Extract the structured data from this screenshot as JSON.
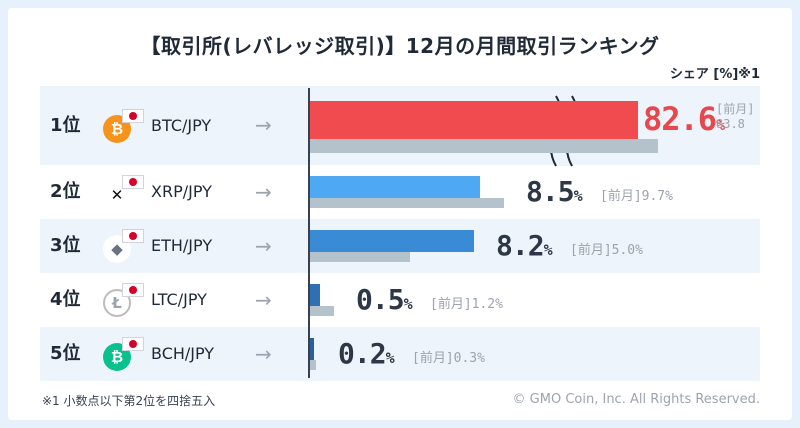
{
  "title": "【取引所(レバレッジ取引)】12月の月間取引ランキング",
  "share_label": "シェア [%]※1",
  "prev_label": "[前月]",
  "rows": [
    {
      "rank": "1位",
      "pair": "BTC/JPY",
      "current": "82.6",
      "previous": "83.8",
      "current_color": "#e8474c",
      "coin_icon": "bitcoin-icon",
      "coin_glyph": "₿",
      "coin_color": "#f7931a"
    },
    {
      "rank": "2位",
      "pair": "XRP/JPY",
      "current": "8.5",
      "previous": "9.7",
      "current_color": "#2d3748",
      "coin_icon": "xrp-icon",
      "coin_glyph": "✕",
      "coin_color": "#ffffff"
    },
    {
      "rank": "3位",
      "pair": "ETH/JPY",
      "current": "8.2",
      "previous": "5.0",
      "current_color": "#2d3748",
      "coin_icon": "ethereum-icon",
      "coin_glyph": "◆",
      "coin_color": "#ffffff"
    },
    {
      "rank": "4位",
      "pair": "LTC/JPY",
      "current": "0.5",
      "previous": "1.2",
      "current_color": "#2d3748",
      "coin_icon": "litecoin-icon",
      "coin_glyph": "Ł",
      "coin_color": "#bfbbbb"
    },
    {
      "rank": "5位",
      "pair": "BCH/JPY",
      "current": "0.2",
      "previous": "0.3",
      "current_color": "#2d3748",
      "coin_icon": "bitcoin-cash-icon",
      "coin_glyph": "₿",
      "coin_color": "#0ac18e"
    }
  ],
  "footnote": "※1  小数点以下第2位を四捨五入",
  "copyright": "© GMO Coin, Inc. All Rights Reserved.",
  "colors": {
    "btc_bar": "#f04b4f",
    "xrp_bar": "#4fa8f2",
    "eth_bar": "#3a8bd6",
    "ltc_bar": "#2f6fb3",
    "bch_bar": "#2a5f9e",
    "prev_bar": "#b4c2cc"
  },
  "chart_data": {
    "type": "bar",
    "title": "【取引所(レバレッジ取引)】12月の月間取引ランキング",
    "categories": [
      "BTC/JPY",
      "XRP/JPY",
      "ETH/JPY",
      "LTC/JPY",
      "BCH/JPY"
    ],
    "series": [
      {
        "name": "",
        "values": [
          82.6,
          8.5,
          8.2,
          0.5,
          0.2
        ]
      },
      {
        "name": "[前月]",
        "values": [
          83.8,
          9.7,
          5.0,
          1.2,
          0.3
        ]
      }
    ],
    "ylabel": "シェア [%]",
    "orientation": "horizontal",
    "axis_break": true
  }
}
